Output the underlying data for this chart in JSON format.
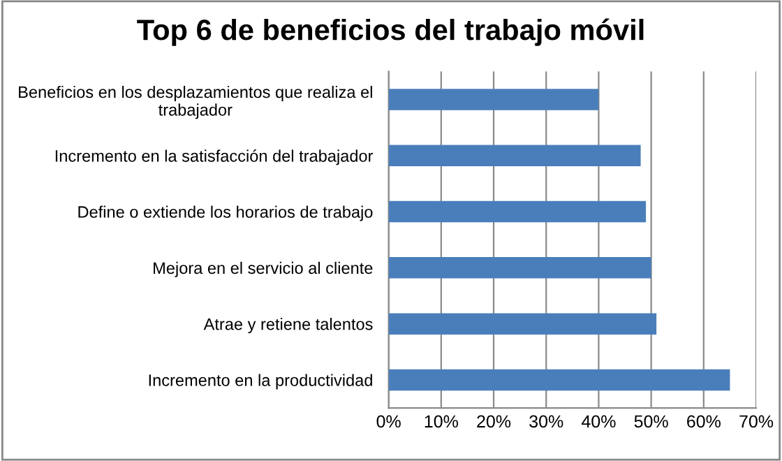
{
  "chart_data": {
    "type": "bar",
    "orientation": "horizontal",
    "title": "Top 6 de beneficios del trabajo móvil",
    "categories": [
      "Beneficios en los desplazamientos que realiza el trabajador",
      "Incremento en la satisfacción del trabajador",
      "Define o extiende los horarios de trabajo",
      "Mejora en el servicio al cliente",
      "Atrae y retiene talentos",
      "Incremento en la productividad"
    ],
    "values": [
      40,
      48,
      49,
      50,
      51,
      65
    ],
    "color": "#4a7ebb",
    "xlim": [
      0,
      70
    ],
    "xticks": [
      {
        "value": 0,
        "label": "0%"
      },
      {
        "value": 10,
        "label": "10%"
      },
      {
        "value": 20,
        "label": "20%"
      },
      {
        "value": 30,
        "label": "30%"
      },
      {
        "value": 40,
        "label": "40%"
      },
      {
        "value": 50,
        "label": "50%"
      },
      {
        "value": 60,
        "label": "60%"
      },
      {
        "value": 70,
        "label": "70%"
      }
    ],
    "grid": "x",
    "legend": false
  }
}
